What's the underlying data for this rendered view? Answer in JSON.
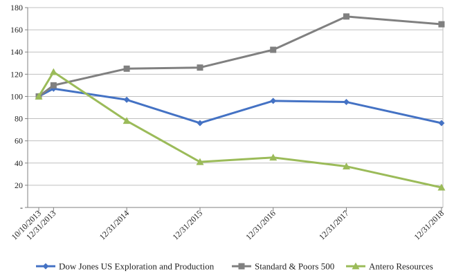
{
  "chart_data": {
    "type": "line",
    "title": "",
    "xlabel": "",
    "ylabel": "",
    "categories": [
      "10/10/2013",
      "12/31/2013",
      "12/31/2014",
      "12/31/2015",
      "12/31/2016",
      "12/31/2017",
      "12/31/2018"
    ],
    "ylim": [
      0,
      180
    ],
    "yticks": [
      0,
      20,
      40,
      60,
      80,
      100,
      120,
      140,
      160,
      180
    ],
    "ytick_labels": [
      "-",
      "20",
      "40",
      "60",
      "80",
      "100",
      "120",
      "140",
      "160",
      "180"
    ],
    "grid": true,
    "legend_position": "bottom",
    "series": [
      {
        "name": "Dow Jones US Exploration and Production",
        "color": "#4472C4",
        "marker": "diamond",
        "values": [
          100,
          107,
          97,
          76,
          96,
          95,
          76
        ]
      },
      {
        "name": "Standard & Poors 500",
        "color": "#808080",
        "marker": "square",
        "values": [
          100,
          110,
          125,
          126,
          142,
          172,
          165
        ]
      },
      {
        "name": "Antero Resources",
        "color": "#9BBB59",
        "marker": "triangle",
        "values": [
          100,
          122,
          78,
          41,
          45,
          37,
          18
        ]
      }
    ]
  }
}
